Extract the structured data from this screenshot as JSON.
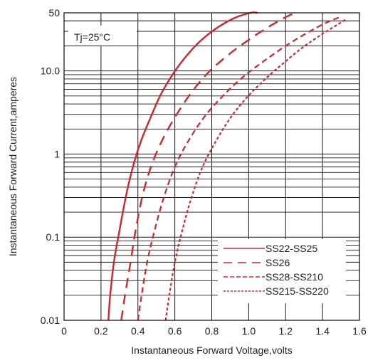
{
  "chart_data": {
    "type": "line",
    "title": "",
    "xlabel": "Instantaneous Forward Voltage,volts",
    "ylabel": "Instantaneous Forward Current,amperes",
    "xlim": [
      0,
      1.6
    ],
    "ylim": [
      0.01,
      50
    ],
    "y_scale": "log",
    "grid": true,
    "x_ticks": [
      0,
      0.2,
      0.4,
      0.6,
      0.8,
      1.0,
      1.2,
      1.4,
      1.6
    ],
    "x_tick_labels": [
      "0",
      "0.2",
      "0.4",
      "0.6",
      "0.8",
      "1.0",
      "1.2",
      "1.4",
      "1.6"
    ],
    "y_ticks": [
      0.01,
      0.1,
      1,
      10,
      50
    ],
    "y_tick_labels": [
      "0.01",
      "0.1",
      "1",
      "10.0",
      "50"
    ],
    "annotation": "Tj=25°C",
    "legend_position": "bottom-right",
    "color": "#d0262c",
    "series": [
      {
        "name": "SS22-SS25",
        "style": "solid",
        "x": [
          0.24,
          0.25,
          0.27,
          0.3,
          0.34,
          0.38,
          0.42,
          0.47,
          0.52,
          0.58,
          0.65,
          0.73,
          0.82,
          0.92,
          1.01,
          1.05
        ],
        "y": [
          0.01,
          0.02,
          0.05,
          0.12,
          0.35,
          0.8,
          1.5,
          2.8,
          5,
          8.5,
          14,
          22,
          32,
          43,
          50,
          50
        ]
      },
      {
        "name": "SS26",
        "style": "dash",
        "x": [
          0.31,
          0.33,
          0.36,
          0.39,
          0.43,
          0.48,
          0.54,
          0.61,
          0.69,
          0.78,
          0.88,
          0.98,
          1.08,
          1.18,
          1.25
        ],
        "y": [
          0.01,
          0.02,
          0.05,
          0.13,
          0.35,
          0.8,
          1.6,
          3,
          5.5,
          9.5,
          15,
          22,
          31,
          42,
          50
        ]
      },
      {
        "name": "SS28-SS210",
        "style": "dash-medium",
        "x": [
          0.4,
          0.42,
          0.45,
          0.49,
          0.54,
          0.6,
          0.67,
          0.76,
          0.86,
          0.97,
          1.08,
          1.2,
          1.32,
          1.42,
          1.5
        ],
        "y": [
          0.01,
          0.02,
          0.05,
          0.12,
          0.3,
          0.7,
          1.4,
          2.8,
          5,
          8.5,
          13,
          20,
          29,
          38,
          45
        ]
      },
      {
        "name": "SS215-SS220",
        "style": "dotted",
        "x": [
          0.55,
          0.57,
          0.6,
          0.64,
          0.69,
          0.75,
          0.82,
          0.9,
          0.99,
          1.09,
          1.19,
          1.29,
          1.39,
          1.48,
          1.53
        ],
        "y": [
          0.01,
          0.02,
          0.05,
          0.12,
          0.3,
          0.7,
          1.4,
          2.7,
          4.8,
          8,
          12.5,
          19,
          27,
          36,
          42
        ]
      }
    ]
  }
}
